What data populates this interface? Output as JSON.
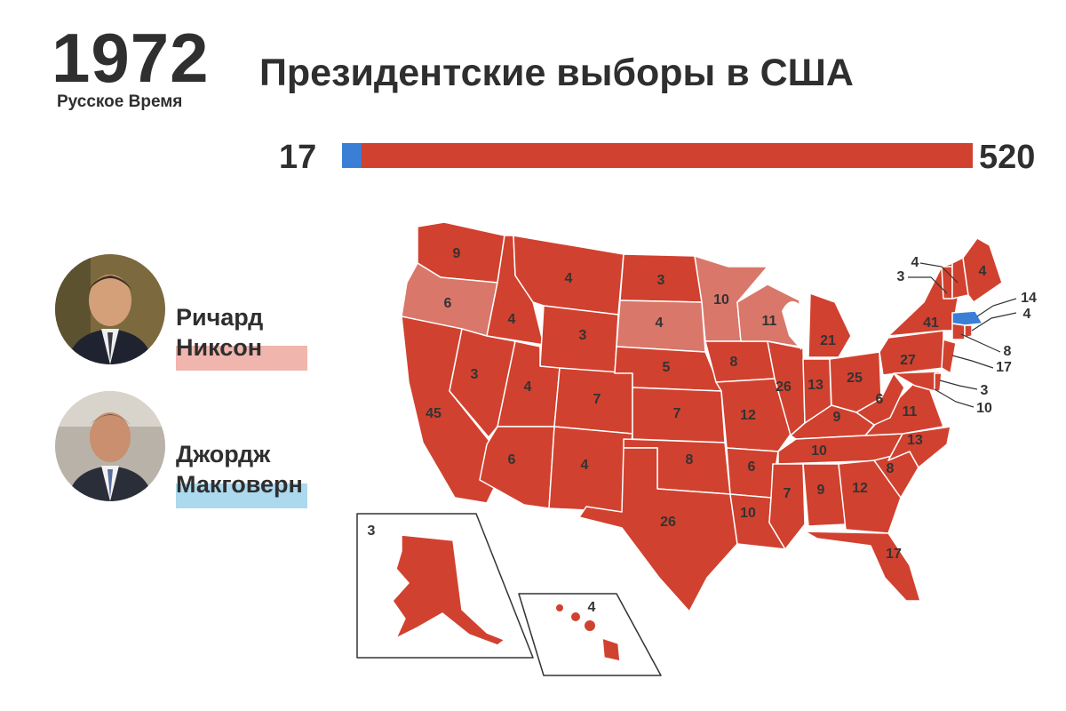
{
  "header": {
    "year": "1972",
    "brand": "Русское Время",
    "title": "Президентские выборы в США"
  },
  "colors": {
    "republican": "#d1412f",
    "republican_light": "#d9776a",
    "democrat": "#3a7fd5",
    "state_border": "#ffffff"
  },
  "tally": {
    "democrat_votes": "17",
    "republican_votes": "520",
    "democrat_value": 17,
    "republican_value": 520
  },
  "candidates": [
    {
      "first": "Ричард",
      "last": "Никсон",
      "underline_color": "#f0b6ad"
    },
    {
      "first": "Джордж",
      "last": "Макговерн",
      "underline_color": "#acd9ee"
    }
  ],
  "states": {
    "WA": {
      "ev": "9"
    },
    "OR": {
      "ev": "6"
    },
    "CA": {
      "ev": "45"
    },
    "ID": {
      "ev": "4"
    },
    "NV": {
      "ev": "3"
    },
    "MT": {
      "ev": "4"
    },
    "WY": {
      "ev": "3"
    },
    "UT": {
      "ev": "4"
    },
    "AZ": {
      "ev": "6"
    },
    "CO": {
      "ev": "7"
    },
    "NM": {
      "ev": "4"
    },
    "ND": {
      "ev": "3"
    },
    "SD": {
      "ev": "4"
    },
    "NE": {
      "ev": "5"
    },
    "KS": {
      "ev": "7"
    },
    "OK": {
      "ev": "8"
    },
    "TX": {
      "ev": "26"
    },
    "MN": {
      "ev": "10"
    },
    "IA": {
      "ev": "8"
    },
    "MO": {
      "ev": "12"
    },
    "AR": {
      "ev": "6"
    },
    "LA": {
      "ev": "10"
    },
    "WI": {
      "ev": "11"
    },
    "IL": {
      "ev": "26"
    },
    "MI": {
      "ev": "21"
    },
    "IN": {
      "ev": "13"
    },
    "OH": {
      "ev": "25"
    },
    "KY": {
      "ev": "9"
    },
    "TN": {
      "ev": "10"
    },
    "MS": {
      "ev": "7"
    },
    "AL": {
      "ev": "9"
    },
    "GA": {
      "ev": "12"
    },
    "FL": {
      "ev": "17"
    },
    "SC": {
      "ev": "8"
    },
    "NC": {
      "ev": "13"
    },
    "VA": {
      "ev": "11"
    },
    "WV": {
      "ev": "6"
    },
    "PA": {
      "ev": "27"
    },
    "NY": {
      "ev": "41"
    },
    "ME": {
      "ev": "4"
    },
    "AK": {
      "ev": "3"
    },
    "HI": {
      "ev": "4"
    }
  },
  "northeast_callouts": {
    "VT": "3",
    "NH": "4",
    "MA": "14",
    "RI": "4",
    "CT": "8",
    "NJ": "17",
    "DE": "3",
    "MD": "10"
  }
}
